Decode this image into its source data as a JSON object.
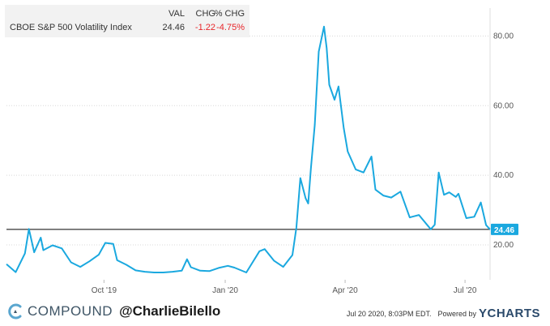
{
  "legend": {
    "header_val": "VAL",
    "header_chg": "CHG",
    "header_pct": "% CHG",
    "series_name": "CBOE S&P 500 Volatility Index",
    "value": "24.46",
    "change": "-1.22",
    "pct_change": "-4.75%"
  },
  "current_value_badge": "24.46",
  "colors": {
    "line": "#1aa8df",
    "badge_bg": "#1aa8df",
    "negative": "#e8262a",
    "reference_line": "#000000"
  },
  "footer": {
    "brand": "COMPOUND",
    "handle": "@CharlieBilello",
    "timestamp": "Jul 20 2020, 8:03PM EDT.",
    "powered_by": "Powered by",
    "provider": "YCHARTS"
  },
  "chart_data": {
    "type": "line",
    "title": "",
    "xlabel": "",
    "ylabel": "",
    "y_axis_position": "right",
    "ylim": [
      10,
      88
    ],
    "y_ticks": [
      "20.00",
      "40.00",
      "60.00",
      "80.00"
    ],
    "y_tick_values": [
      20,
      40,
      60,
      80
    ],
    "x_ticks": [
      {
        "label": "Oct '19",
        "date": "2019-10-01"
      },
      {
        "label": "Jan '20",
        "date": "2020-01-01"
      },
      {
        "label": "Apr '20",
        "date": "2020-04-01"
      },
      {
        "label": "Jul '20",
        "date": "2020-07-01"
      }
    ],
    "x_range": [
      "2019-07-19",
      "2020-07-20"
    ],
    "reference_line": 24.46,
    "grid": "horizontal dotted",
    "series": [
      {
        "name": "CBOE S&P 500 Volatility Index",
        "x": [
          "2019-07-19",
          "2019-07-26",
          "2019-08-02",
          "2019-08-05",
          "2019-08-09",
          "2019-08-14",
          "2019-08-16",
          "2019-08-23",
          "2019-08-30",
          "2019-09-06",
          "2019-09-13",
          "2019-09-20",
          "2019-09-27",
          "2019-10-02",
          "2019-10-08",
          "2019-10-11",
          "2019-10-18",
          "2019-10-25",
          "2019-11-01",
          "2019-11-08",
          "2019-11-15",
          "2019-11-22",
          "2019-11-29",
          "2019-12-03",
          "2019-12-06",
          "2019-12-13",
          "2019-12-20",
          "2019-12-27",
          "2020-01-03",
          "2020-01-08",
          "2020-01-17",
          "2020-01-27",
          "2020-01-31",
          "2020-02-07",
          "2020-02-14",
          "2020-02-21",
          "2020-02-24",
          "2020-02-27",
          "2020-03-02",
          "2020-03-04",
          "2020-03-06",
          "2020-03-09",
          "2020-03-12",
          "2020-03-16",
          "2020-03-18",
          "2020-03-20",
          "2020-03-24",
          "2020-03-27",
          "2020-03-31",
          "2020-04-03",
          "2020-04-09",
          "2020-04-15",
          "2020-04-21",
          "2020-04-24",
          "2020-04-30",
          "2020-05-06",
          "2020-05-13",
          "2020-05-20",
          "2020-05-27",
          "2020-06-05",
          "2020-06-08",
          "2020-06-11",
          "2020-06-15",
          "2020-06-19",
          "2020-06-24",
          "2020-06-26",
          "2020-07-02",
          "2020-07-08",
          "2020-07-13",
          "2020-07-17",
          "2020-07-20"
        ],
        "values": [
          14.5,
          12.2,
          17.6,
          24.6,
          17.9,
          22.1,
          18.5,
          19.9,
          19.0,
          15.0,
          13.7,
          15.3,
          17.2,
          20.6,
          20.3,
          15.6,
          14.3,
          12.7,
          12.3,
          12.1,
          12.1,
          12.3,
          12.6,
          15.9,
          13.6,
          12.6,
          12.5,
          13.4,
          14.0,
          13.5,
          12.1,
          18.2,
          18.8,
          15.5,
          13.7,
          17.1,
          25.0,
          39.2,
          33.4,
          31.9,
          41.9,
          54.5,
          75.5,
          82.7,
          76.5,
          66.0,
          61.7,
          65.5,
          53.5,
          46.8,
          41.7,
          40.8,
          45.4,
          35.9,
          34.2,
          33.6,
          35.3,
          27.9,
          28.6,
          24.5,
          25.8,
          40.8,
          34.4,
          35.1,
          33.8,
          34.7,
          27.7,
          28.1,
          32.2,
          25.7,
          24.46
        ]
      }
    ]
  }
}
